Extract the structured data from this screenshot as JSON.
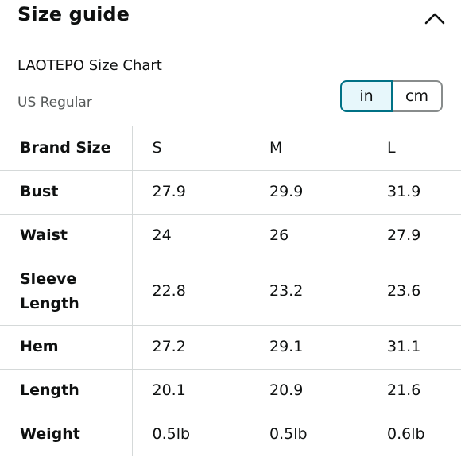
{
  "header": {
    "title": "Size guide",
    "collapse_icon": "chevron-up-icon"
  },
  "chart": {
    "title": "LAOTEPO Size Chart",
    "region": "US Regular"
  },
  "units": {
    "selected": "in",
    "options": [
      "in",
      "cm"
    ]
  },
  "table": {
    "header": {
      "label": "Brand Size",
      "values": [
        "S",
        "M",
        "L"
      ]
    },
    "rows": [
      {
        "label": "Bust",
        "values": [
          "27.9",
          "29.9",
          "31.9"
        ]
      },
      {
        "label": "Waist",
        "values": [
          "24",
          "26",
          "27.9"
        ]
      },
      {
        "label": "Sleeve Length",
        "values": [
          "22.8",
          "23.2",
          "23.6"
        ]
      },
      {
        "label": "Hem",
        "values": [
          "27.2",
          "29.1",
          "31.1"
        ]
      },
      {
        "label": "Length",
        "values": [
          "20.1",
          "20.9",
          "21.6"
        ]
      },
      {
        "label": "Weight",
        "values": [
          "0.5lb",
          "0.5lb",
          "0.6lb"
        ]
      }
    ]
  },
  "colors": {
    "accent": "#007185",
    "selected_bg": "#e7f7fb",
    "text": "#0f1111",
    "muted_text": "#565959",
    "divider": "#d5d9d9"
  }
}
